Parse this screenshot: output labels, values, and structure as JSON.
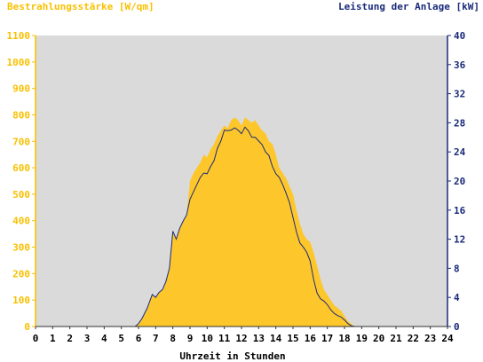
{
  "chart_data": {
    "type": "area",
    "title_left": "Bestrahlungsstärke [W/qm]",
    "title_right": "Leistung der Anlage [kW]",
    "xlabel": "Uhrzeit in Stunden",
    "x_ticks": [
      "0",
      "1",
      "2",
      "3",
      "4",
      "5",
      "6",
      "7",
      "8",
      "9",
      "10",
      "11",
      "12",
      "13",
      "14",
      "15",
      "16",
      "17",
      "18",
      "19",
      "20",
      "21",
      "22",
      "23",
      "24"
    ],
    "y_left": {
      "label": "Bestrahlungsstärke [W/qm]",
      "ylim": [
        0,
        1100
      ],
      "ticks": [
        "0",
        "100",
        "200",
        "300",
        "400",
        "500",
        "600",
        "700",
        "800",
        "900",
        "1000",
        "1100"
      ]
    },
    "y_right": {
      "label": "Leistung der Anlage [kW]",
      "ylim": [
        0,
        40
      ],
      "ticks": [
        "0",
        "4",
        "8",
        "12",
        "16",
        "20",
        "24",
        "28",
        "32",
        "36",
        "40"
      ]
    },
    "series": [
      {
        "name": "Bestrahlungsstärke",
        "axis": "left",
        "x": [
          0,
          5.8,
          6,
          6.2,
          6.5,
          6.8,
          7,
          7.2,
          7.4,
          7.6,
          7.8,
          8,
          8.2,
          8.4,
          8.6,
          8.8,
          9,
          9.2,
          9.4,
          9.6,
          9.8,
          10,
          10.2,
          10.4,
          10.6,
          10.8,
          11,
          11.2,
          11.4,
          11.6,
          11.8,
          12,
          12.2,
          12.4,
          12.6,
          12.8,
          13,
          13.2,
          13.4,
          13.6,
          13.8,
          14,
          14.2,
          14.4,
          14.6,
          14.8,
          15,
          15.2,
          15.4,
          15.6,
          15.8,
          16,
          16.2,
          16.4,
          16.6,
          16.8,
          17,
          17.2,
          17.4,
          17.6,
          17.8,
          18,
          18.2,
          18.4,
          18.6,
          18.8,
          19,
          19.2,
          19.4,
          24
        ],
        "values": [
          0,
          0,
          10,
          30,
          70,
          120,
          110,
          130,
          140,
          170,
          220,
          360,
          330,
          370,
          400,
          420,
          550,
          580,
          600,
          620,
          650,
          640,
          670,
          690,
          720,
          740,
          760,
          750,
          780,
          790,
          780,
          760,
          790,
          780,
          770,
          780,
          760,
          740,
          730,
          700,
          690,
          650,
          600,
          580,
          560,
          530,
          500,
          440,
          390,
          350,
          330,
          320,
          280,
          230,
          180,
          140,
          120,
          100,
          80,
          70,
          60,
          40,
          20,
          10,
          0,
          0,
          0,
          0,
          0,
          0
        ]
      },
      {
        "name": "Leistung der Anlage",
        "axis": "right",
        "x": [
          0,
          5.8,
          6,
          6.2,
          6.5,
          6.8,
          7,
          7.2,
          7.4,
          7.6,
          7.8,
          8,
          8.2,
          8.4,
          8.6,
          8.8,
          9,
          9.2,
          9.4,
          9.6,
          9.8,
          10,
          10.2,
          10.4,
          10.6,
          10.8,
          11,
          11.2,
          11.4,
          11.6,
          11.8,
          12,
          12.2,
          12.4,
          12.6,
          12.8,
          13,
          13.2,
          13.4,
          13.6,
          13.8,
          14,
          14.2,
          14.4,
          14.6,
          14.8,
          15,
          15.2,
          15.4,
          15.6,
          15.8,
          16,
          16.2,
          16.4,
          16.6,
          16.8,
          17,
          17.2,
          17.4,
          17.6,
          17.8,
          18,
          18.2,
          18.4,
          18.6,
          18.8,
          19,
          19.2,
          19.4,
          24
        ],
        "values": [
          0,
          0,
          0.4,
          1.1,
          2.5,
          4.4,
          4.0,
          4.7,
          5.1,
          6.2,
          8.0,
          13.1,
          12.0,
          13.5,
          14.5,
          15.3,
          17.5,
          18.5,
          19.5,
          20.5,
          21.1,
          21.0,
          22.0,
          22.8,
          24.5,
          25.5,
          27.0,
          26.9,
          27.0,
          27.3,
          27.0,
          26.5,
          27.4,
          26.9,
          26.0,
          26.0,
          25.5,
          25.0,
          24.0,
          23.5,
          22.0,
          21.0,
          20.5,
          19.5,
          18.3,
          17.0,
          15.0,
          13.0,
          11.5,
          10.9,
          10.2,
          9.0,
          6.5,
          4.6,
          3.8,
          3.5,
          3.0,
          2.3,
          1.8,
          1.5,
          1.3,
          0.9,
          0.4,
          0.1,
          0,
          0,
          0,
          0,
          0,
          0
        ]
      }
    ],
    "colors": {
      "left_axis": "#f8c000",
      "right_axis": "#1a2a7a",
      "area_fill": "#fdc72c",
      "plot_bg": "#dadada",
      "line": "#1a2a7a"
    },
    "grid": false
  }
}
